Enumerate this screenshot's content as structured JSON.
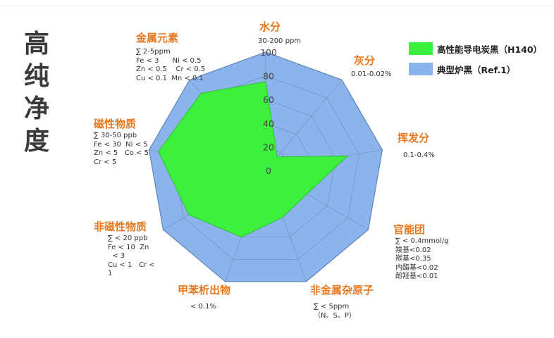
{
  "side_title": [
    "高",
    "纯",
    "净",
    "度"
  ],
  "colors": {
    "h140": "#3ef03e",
    "ref": "#8cb4ec",
    "label": "#e8781f"
  },
  "chart_data": {
    "type": "radar",
    "axes": [
      "水分",
      "灰分",
      "挥发分",
      "官能团",
      "非金属杂原子",
      "甲苯析出物",
      "非磁性物质",
      "磁性物质",
      "金属元素"
    ],
    "notes": [
      "30-200 ppm",
      "0.01-0.02%",
      "0.1-0.4%",
      "∑ < 0.4mmol/g\n羧基<0.02\n羰基<0.35\n内酯基<0.02\n酚羟基<0.01",
      "∑ < 5ppm\n（N、S、P）",
      "< 0.1%",
      "∑ < 20 ppb\nFe < 10  Zn\n  < 3\nCu < 1   Cr <\n1",
      "∑ 30-50 ppb\nFe < 30  Ni < 5\nZn < 5   Co < 5\nCr < 5",
      "∑ 2-5ppm\nFe < 3      Ni < 0.5\nZn < 0.5    Cr < 0.5\nCu < 0.1  Mn < 0.1"
    ],
    "r_ticks": [
      0,
      20,
      40,
      60,
      80,
      100
    ],
    "r_range": [
      0,
      100
    ],
    "series": [
      {
        "name": "高性能导电炭黑（H140）",
        "values": [
          75,
          15,
          70,
          40,
          42,
          60,
          75,
          92,
          85
        ]
      },
      {
        "name": "典型炉黑（Ref.1）",
        "values": [
          100,
          100,
          100,
          100,
          100,
          100,
          100,
          100,
          100
        ]
      }
    ],
    "legend_position": "top-right"
  }
}
